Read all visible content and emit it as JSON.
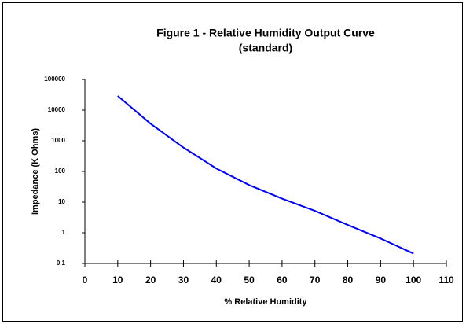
{
  "chart_data": {
    "type": "line",
    "title": "Figure 1 - Relative Humidity Output Curve",
    "subtitle": "(standard)",
    "x_label": "% Relative Humidity",
    "y_label": "Impedance  (K Ohms)",
    "x": [
      10,
      20,
      30,
      40,
      50,
      60,
      70,
      80,
      90,
      100
    ],
    "series": [
      {
        "name": "Impedance",
        "color": "#0000ff",
        "values": [
          29000,
          3600,
          600,
          125,
          36,
          13,
          5.2,
          1.8,
          0.65,
          0.21
        ]
      }
    ],
    "xlim": [
      0,
      110
    ],
    "xticks": [
      0,
      10,
      20,
      30,
      40,
      50,
      60,
      70,
      80,
      90,
      100,
      110
    ],
    "ylim": [
      0.1,
      100000
    ],
    "yticks": [
      0.1,
      1,
      10,
      100,
      1000,
      10000,
      100000
    ],
    "y_log": true,
    "grid": false
  }
}
